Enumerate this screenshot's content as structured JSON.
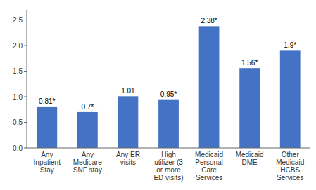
{
  "chart_data": {
    "type": "bar",
    "categories": [
      "Any\nInpatient\nStay",
      "Any\nMedicare\nSNF stay",
      "Any ER\nvisits",
      "High\nutilizer (3\nor more\nED visits)",
      "Medicaid\nPersonal\nCare\nServices",
      "Medicaid\nDME",
      "Other\nMedicaid\nHCBS\nServices"
    ],
    "values": [
      0.81,
      0.7,
      1.01,
      0.95,
      2.38,
      1.56,
      1.9
    ],
    "value_labels": [
      "0.81*",
      "0.7*",
      "1.01",
      "0.95*",
      "2.38*",
      "1.56*",
      "1.9*"
    ],
    "data_labels": true,
    "color": "#4472C4",
    "ylim": [
      0,
      2.7
    ],
    "yticks": [
      {
        "value": 0,
        "label": "0.0"
      },
      0.5,
      {
        "value": 1,
        "label": "1.0"
      },
      1.5,
      {
        "value": 2,
        "label": "2.0"
      },
      2.5
    ],
    "grid": false
  }
}
